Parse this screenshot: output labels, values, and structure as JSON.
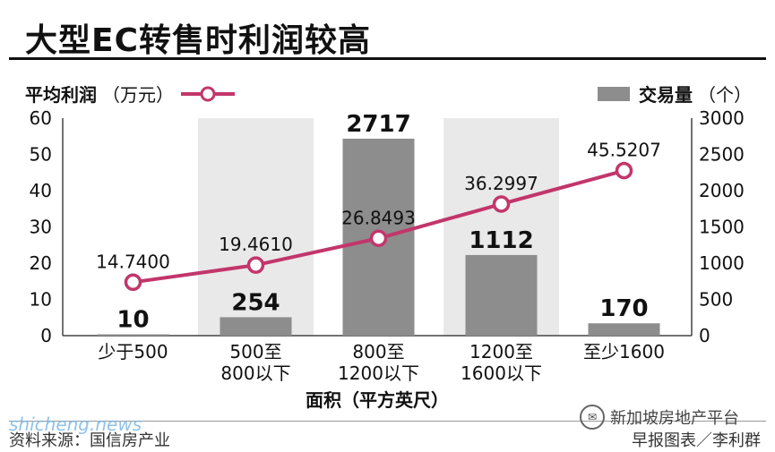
{
  "title": "大型EC转售时利润较高",
  "legend": {
    "left_label": "平均利润",
    "left_unit": "（万元）",
    "right_label": "交易量",
    "right_unit": "（个）"
  },
  "footer": {
    "source": "资料来源：国信房产业",
    "credit": "早报图表／李利群",
    "watermark": "shicheng.news",
    "wechat": "新加坡房地产平台"
  },
  "colors": {
    "line": "#c2366b",
    "bar": "#8d8d8d",
    "band": "#e9e9e9"
  },
  "chart_data": {
    "type": "bar",
    "xlabel": "面积（平方英尺）",
    "categories": [
      [
        "少于500"
      ],
      [
        "500至",
        "800以下"
      ],
      [
        "800至",
        "1200以下"
      ],
      [
        "1200至",
        "1600以下"
      ],
      [
        "至少1600"
      ]
    ],
    "bars": {
      "values": [
        10,
        254,
        2717,
        1112,
        170
      ],
      "labels": [
        "10",
        "254",
        "2717",
        "1112",
        "170"
      ],
      "ylim": [
        0,
        3000
      ],
      "ticks": [
        "0",
        "500",
        "1000",
        "1500",
        "2000",
        "2500",
        "3000"
      ]
    },
    "line": {
      "values": [
        14.74,
        19.461,
        26.8493,
        36.2997,
        45.5207
      ],
      "labels": [
        "14.7400",
        "19.4610",
        "26.8493",
        "36.2997",
        "45.5207"
      ],
      "ylim": [
        0,
        60
      ],
      "ticks": [
        "0",
        "10",
        "20",
        "30",
        "40",
        "50",
        "60"
      ]
    },
    "shaded_categories": [
      1,
      3
    ]
  }
}
